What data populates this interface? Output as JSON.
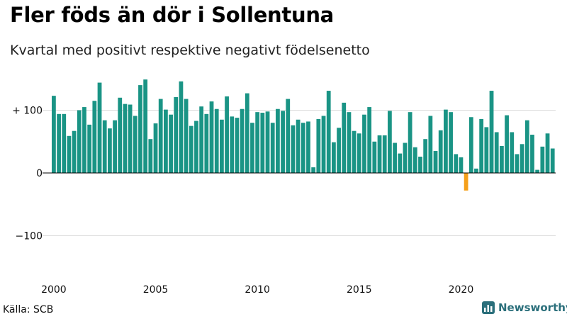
{
  "title": "Fler föds än dör i Sollentuna",
  "subtitle": "Kvartal med positivt respektive negativt födelsenetto",
  "source": "Källa: SCB",
  "brand": {
    "name": "Newsworthy",
    "icon": "newsworthy-logo-icon"
  },
  "colors": {
    "positive": "#1a9485",
    "negative": "#f5a01a",
    "grid": "#dddddd",
    "zero_line": "#000000",
    "brand": "#2b6f7b"
  },
  "chart_data": {
    "type": "bar",
    "x_start_year": 2000,
    "x_tick_labels": [
      "2000",
      "2005",
      "2010",
      "2015",
      "2020"
    ],
    "y_ticks": [
      -100,
      0,
      100
    ],
    "y_tick_labels": [
      "−100",
      "0",
      "+ 100"
    ],
    "ylim": [
      -160,
      150
    ],
    "grid": true,
    "xlabel": "",
    "ylabel": "",
    "values": [
      123,
      94,
      94,
      59,
      67,
      100,
      105,
      77,
      115,
      144,
      84,
      71,
      84,
      120,
      110,
      109,
      91,
      140,
      149,
      54,
      79,
      118,
      101,
      93,
      121,
      146,
      118,
      75,
      83,
      106,
      94,
      114,
      102,
      85,
      122,
      90,
      88,
      102,
      127,
      80,
      97,
      96,
      98,
      80,
      102,
      99,
      118,
      76,
      85,
      80,
      82,
      9,
      86,
      91,
      131,
      49,
      72,
      112,
      97,
      67,
      63,
      93,
      105,
      50,
      60,
      60,
      99,
      48,
      31,
      48,
      97,
      41,
      26,
      54,
      91,
      35,
      68,
      101,
      97,
      30,
      25,
      -28,
      89,
      7,
      86,
      73,
      131,
      65,
      43,
      92,
      65,
      30,
      46,
      84,
      61,
      5,
      42,
      63,
      39
    ]
  }
}
